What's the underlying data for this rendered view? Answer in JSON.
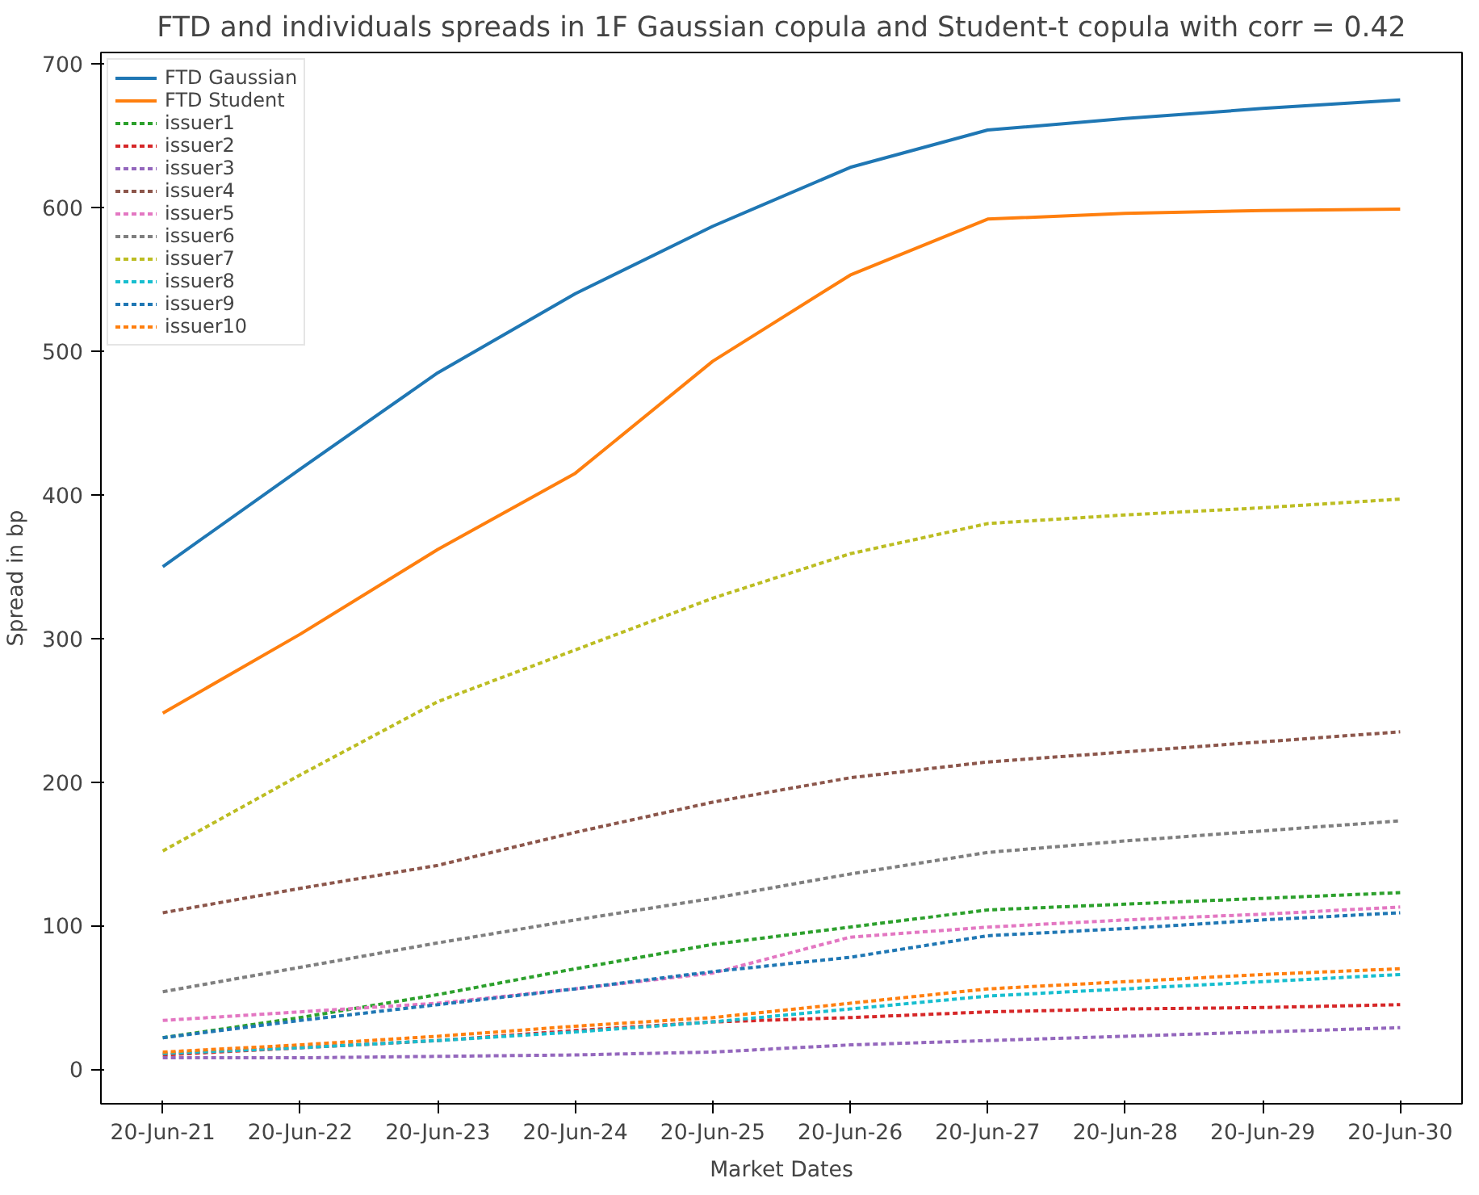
{
  "chart_data": {
    "type": "line",
    "title": "FTD and individuals spreads in 1F Gaussian copula and Student-t copula with corr = 0.42",
    "xlabel": "Market Dates",
    "ylabel": "Spread in bp",
    "categories": [
      "20-Jun-21",
      "20-Jun-22",
      "20-Jun-23",
      "20-Jun-24",
      "20-Jun-25",
      "20-Jun-26",
      "20-Jun-27",
      "20-Jun-28",
      "20-Jun-29",
      "20-Jun-30"
    ],
    "ylim": [
      -24,
      708
    ],
    "yticks": [
      0,
      100,
      200,
      300,
      400,
      500,
      600,
      700
    ],
    "grid": false,
    "legend": "top left",
    "marker": "none",
    "series": [
      {
        "name": "FTD Gaussian",
        "color": "#1f77b4",
        "line_style": "solid",
        "values": [
          350,
          418,
          485,
          540,
          587,
          628,
          654,
          662,
          669,
          675
        ]
      },
      {
        "name": "FTD Student",
        "color": "#ff7f0e",
        "line_style": "solid",
        "values": [
          248,
          303,
          362,
          415,
          493,
          553,
          592,
          596,
          598,
          599
        ]
      },
      {
        "name": "issuer1",
        "color": "#2ca02c",
        "line_style": "dashed",
        "values": [
          22,
          36,
          52,
          70,
          87,
          99,
          111,
          115,
          119,
          123
        ]
      },
      {
        "name": "issuer2",
        "color": "#d62728",
        "line_style": "dashed",
        "values": [
          10,
          15,
          20,
          27,
          33,
          36,
          40,
          42,
          43,
          45
        ]
      },
      {
        "name": "issuer3",
        "color": "#9467bd",
        "line_style": "dashed",
        "values": [
          8,
          8,
          9,
          10,
          12,
          17,
          20,
          23,
          26,
          29
        ]
      },
      {
        "name": "issuer4",
        "color": "#8c564b",
        "line_style": "dashed",
        "values": [
          109,
          126,
          142,
          165,
          186,
          203,
          214,
          221,
          228,
          235
        ]
      },
      {
        "name": "issuer5",
        "color": "#e377c2",
        "line_style": "dashed",
        "values": [
          34,
          40,
          46,
          56,
          67,
          92,
          99,
          104,
          108,
          113
        ]
      },
      {
        "name": "issuer6",
        "color": "#7f7f7f",
        "line_style": "dashed",
        "values": [
          54,
          71,
          88,
          104,
          119,
          136,
          151,
          159,
          166,
          173
        ]
      },
      {
        "name": "issuer7",
        "color": "#bcbd22",
        "line_style": "dashed",
        "values": [
          152,
          205,
          256,
          292,
          328,
          359,
          380,
          386,
          391,
          397
        ]
      },
      {
        "name": "issuer8",
        "color": "#17becf",
        "line_style": "dashed",
        "values": [
          11,
          15,
          20,
          26,
          33,
          42,
          51,
          56,
          61,
          66
        ]
      },
      {
        "name": "issuer9",
        "color": "#1f77b4",
        "line_style": "dashed",
        "values": [
          22,
          34,
          45,
          56,
          68,
          78,
          93,
          98,
          104,
          109
        ]
      },
      {
        "name": "issuer10",
        "color": "#ff7f0e",
        "line_style": "dashed",
        "values": [
          12,
          17,
          23,
          30,
          36,
          46,
          56,
          61,
          66,
          70
        ]
      }
    ]
  }
}
